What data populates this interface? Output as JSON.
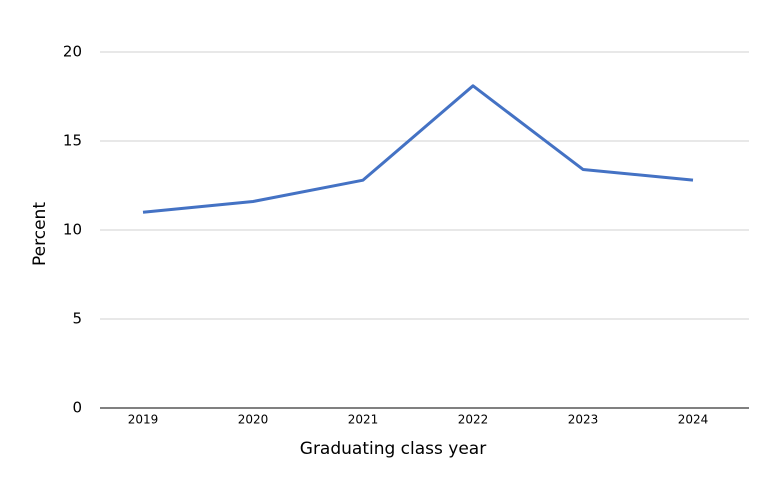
{
  "chart_data": {
    "type": "line",
    "categories": [
      "2019",
      "2020",
      "2021",
      "2022",
      "2023",
      "2024"
    ],
    "series": [
      {
        "name": "Percent",
        "color": "#4472c4",
        "values": [
          11.0,
          11.6,
          12.8,
          18.1,
          13.4,
          12.8
        ]
      }
    ],
    "ylim": [
      0,
      20
    ],
    "yticks": [
      0,
      5,
      10,
      15,
      20
    ],
    "grid": true,
    "ylabel": "Percent",
    "xlabel": "Graduating class year"
  }
}
